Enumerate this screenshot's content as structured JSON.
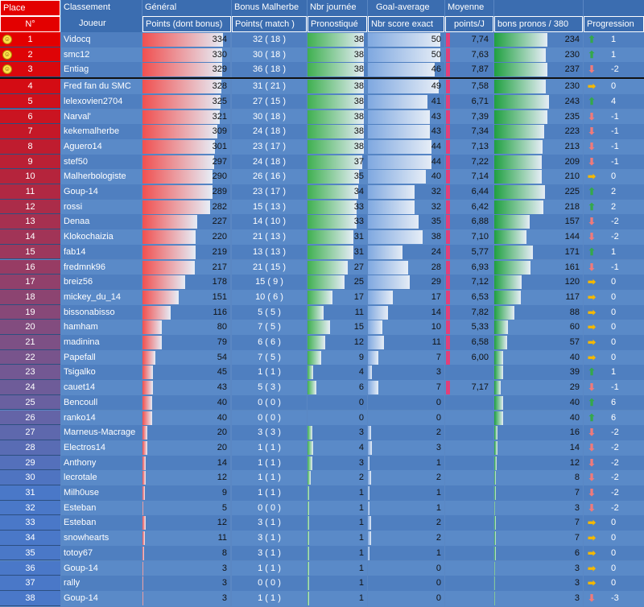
{
  "headers": {
    "place": "Place",
    "no": "N°",
    "classement": "Classement",
    "joueur": "Joueur",
    "general": "Général",
    "general_sub": "Points (dont bonus)",
    "bonus": "Bonus Malherbe",
    "bonus_sub": "Points( match )",
    "nbr_journee": "Nbr journée",
    "nbr_journee_sub": "Pronostiqué",
    "goal_average": "Goal-average",
    "goal_average_sub": "Nbr score exact",
    "moyenne": "Moyenne",
    "moyenne_sub": "points/J",
    "bons_pronos": "bons pronos / 380",
    "progression": "Progression"
  },
  "colors": {
    "place_red": "#e30000",
    "general_bar": "#f05050",
    "nbrj_bar": "#3fb050",
    "ga_bar": "#7fa8e0",
    "moy_bar": "#e0407a",
    "bons_bar": "#1fa040",
    "up": "#34a84a",
    "down": "#f07a7a",
    "flat": "#f5b800"
  },
  "table": {
    "max_general": 334,
    "max_nbrj": 38,
    "max_ga": 50,
    "max_moy": 7.87,
    "max_bons": 380,
    "rows": [
      {
        "place": "1",
        "smile": true,
        "name": "Vidocq",
        "gen": "334",
        "bonus": "32 ( 18 )",
        "nbrj": "38",
        "ga": "50",
        "moy": "7,74",
        "bons": "234",
        "dir": "up",
        "prog": "1"
      },
      {
        "place": "2",
        "smile": true,
        "name": "smc12",
        "gen": "330",
        "bonus": "30 ( 18 )",
        "nbrj": "38",
        "ga": "50",
        "moy": "7,63",
        "bons": "230",
        "dir": "up",
        "prog": "1"
      },
      {
        "place": "3",
        "smile": true,
        "name": "Entiag",
        "gen": "329",
        "bonus": "36 ( 18 )",
        "nbrj": "38",
        "ga": "46",
        "moy": "7,87",
        "bons": "237",
        "dir": "down",
        "prog": "-2"
      },
      {
        "place": "4",
        "smile": false,
        "name": "Fred fan du SMC",
        "gen": "328",
        "bonus": "31 ( 21 )",
        "nbrj": "38",
        "ga": "49",
        "moy": "7,58",
        "bons": "230",
        "dir": "flat",
        "prog": "0"
      },
      {
        "place": "5",
        "smile": false,
        "name": "lelexovien2704",
        "gen": "325",
        "bonus": "27 ( 15 )",
        "nbrj": "38",
        "ga": "41",
        "moy": "6,71",
        "bons": "243",
        "dir": "up",
        "prog": "4"
      },
      {
        "place": "6",
        "smile": false,
        "name": "Narval'",
        "gen": "321",
        "bonus": "30 ( 18 )",
        "nbrj": "38",
        "ga": "43",
        "moy": "7,39",
        "bons": "235",
        "dir": "down",
        "prog": "-1"
      },
      {
        "place": "7",
        "smile": false,
        "name": "kekemalherbe",
        "gen": "309",
        "bonus": "24 ( 18 )",
        "nbrj": "38",
        "ga": "43",
        "moy": "7,34",
        "bons": "223",
        "dir": "down",
        "prog": "-1"
      },
      {
        "place": "8",
        "smile": false,
        "name": "Aguero14",
        "gen": "301",
        "bonus": "23 ( 17 )",
        "nbrj": "38",
        "ga": "44",
        "moy": "7,13",
        "bons": "213",
        "dir": "down",
        "prog": "-1"
      },
      {
        "place": "9",
        "smile": false,
        "name": "stef50",
        "gen": "297",
        "bonus": "24 ( 18 )",
        "nbrj": "37",
        "ga": "44",
        "moy": "7,22",
        "bons": "209",
        "dir": "down",
        "prog": "-1"
      },
      {
        "place": "10",
        "smile": false,
        "name": "Malherbologiste",
        "gen": "290",
        "bonus": "26 ( 16 )",
        "nbrj": "35",
        "ga": "40",
        "moy": "7,14",
        "bons": "210",
        "dir": "flat",
        "prog": "0"
      },
      {
        "place": "11",
        "smile": false,
        "name": "Goup-14",
        "gen": "289",
        "bonus": "23 ( 17 )",
        "nbrj": "34",
        "ga": "32",
        "moy": "6,44",
        "bons": "225",
        "dir": "up",
        "prog": "2"
      },
      {
        "place": "12",
        "smile": false,
        "name": "rossi",
        "gen": "282",
        "bonus": "15 ( 13 )",
        "nbrj": "33",
        "ga": "32",
        "moy": "6,42",
        "bons": "218",
        "dir": "up",
        "prog": "2"
      },
      {
        "place": "13",
        "smile": false,
        "name": "Denaa",
        "gen": "227",
        "bonus": "14 ( 10 )",
        "nbrj": "33",
        "ga": "35",
        "moy": "6,88",
        "bons": "157",
        "dir": "down",
        "prog": "-2"
      },
      {
        "place": "14",
        "smile": false,
        "name": "Klokochaizia",
        "gen": "220",
        "bonus": "21 ( 13 )",
        "nbrj": "31",
        "ga": "38",
        "moy": "7,10",
        "bons": "144",
        "dir": "down",
        "prog": "-2"
      },
      {
        "place": "15",
        "smile": false,
        "name": "fab14",
        "gen": "219",
        "bonus": "13 ( 13 )",
        "nbrj": "31",
        "ga": "24",
        "moy": "5,77",
        "bons": "171",
        "dir": "up",
        "prog": "1"
      },
      {
        "place": "16",
        "smile": false,
        "name": "fredmnk96",
        "gen": "217",
        "bonus": "21 ( 15 )",
        "nbrj": "27",
        "ga": "28",
        "moy": "6,93",
        "bons": "161",
        "dir": "down",
        "prog": "-1"
      },
      {
        "place": "17",
        "smile": false,
        "name": "breiz56",
        "gen": "178",
        "bonus": "15 ( 9 )",
        "nbrj": "25",
        "ga": "29",
        "moy": "7,12",
        "bons": "120",
        "dir": "flat",
        "prog": "0"
      },
      {
        "place": "18",
        "smile": false,
        "name": "mickey_du_14",
        "gen": "151",
        "bonus": "10 ( 6 )",
        "nbrj": "17",
        "ga": "17",
        "moy": "6,53",
        "bons": "117",
        "dir": "flat",
        "prog": "0"
      },
      {
        "place": "19",
        "smile": false,
        "name": "bissonabisso",
        "gen": "116",
        "bonus": "5 ( 5 )",
        "nbrj": "11",
        "ga": "14",
        "moy": "7,82",
        "bons": "88",
        "dir": "flat",
        "prog": "0"
      },
      {
        "place": "20",
        "smile": false,
        "name": "hamham",
        "gen": "80",
        "bonus": "7 ( 5 )",
        "nbrj": "15",
        "ga": "10",
        "moy": "5,33",
        "bons": "60",
        "dir": "flat",
        "prog": "0"
      },
      {
        "place": "21",
        "smile": false,
        "name": "madinina",
        "gen": "79",
        "bonus": "6 ( 6 )",
        "nbrj": "12",
        "ga": "11",
        "moy": "6,58",
        "bons": "57",
        "dir": "flat",
        "prog": "0"
      },
      {
        "place": "22",
        "smile": false,
        "name": "Papefall",
        "gen": "54",
        "bonus": "7 ( 5 )",
        "nbrj": "9",
        "ga": "7",
        "moy": "6,00",
        "bons": "40",
        "dir": "flat",
        "prog": "0"
      },
      {
        "place": "23",
        "smile": false,
        "name": "Tsigalko",
        "gen": "45",
        "bonus": "1 ( 1 )",
        "nbrj": "4",
        "ga": "3",
        "moy": "",
        "bons": "39",
        "dir": "up",
        "prog": "1"
      },
      {
        "place": "24",
        "smile": false,
        "name": "cauet14",
        "gen": "43",
        "bonus": "5 ( 3 )",
        "nbrj": "6",
        "ga": "7",
        "moy": "7,17",
        "bons": "29",
        "dir": "down",
        "prog": "-1"
      },
      {
        "place": "25",
        "smile": false,
        "name": "Bencoull",
        "gen": "40",
        "bonus": "0 ( 0 )",
        "nbrj": "0",
        "ga": "0",
        "moy": "",
        "bons": "40",
        "dir": "up",
        "prog": "6"
      },
      {
        "place": "26",
        "smile": false,
        "name": "ranko14",
        "gen": "40",
        "bonus": "0 ( 0 )",
        "nbrj": "0",
        "ga": "0",
        "moy": "",
        "bons": "40",
        "dir": "up",
        "prog": "6"
      },
      {
        "place": "27",
        "smile": false,
        "name": "Marneus-Macrage",
        "gen": "20",
        "bonus": "3 ( 3 )",
        "nbrj": "3",
        "ga": "2",
        "moy": "",
        "bons": "16",
        "dir": "down",
        "prog": "-2"
      },
      {
        "place": "28",
        "smile": false,
        "name": "Electros14",
        "gen": "20",
        "bonus": "1 ( 1 )",
        "nbrj": "4",
        "ga": "3",
        "moy": "",
        "bons": "14",
        "dir": "down",
        "prog": "-2"
      },
      {
        "place": "29",
        "smile": false,
        "name": "Anthony",
        "gen": "14",
        "bonus": "1 ( 1 )",
        "nbrj": "3",
        "ga": "1",
        "moy": "",
        "bons": "12",
        "dir": "down",
        "prog": "-2"
      },
      {
        "place": "30",
        "smile": false,
        "name": "lecrotale",
        "gen": "12",
        "bonus": "1 ( 1 )",
        "nbrj": "2",
        "ga": "2",
        "moy": "",
        "bons": "8",
        "dir": "down",
        "prog": "-2"
      },
      {
        "place": "31",
        "smile": false,
        "name": "Milh0use",
        "gen": "9",
        "bonus": "1 ( 1 )",
        "nbrj": "1",
        "ga": "1",
        "moy": "",
        "bons": "7",
        "dir": "down",
        "prog": "-2"
      },
      {
        "place": "32",
        "smile": false,
        "name": "Esteban",
        "gen": "5",
        "bonus": "0 ( 0 )",
        "nbrj": "1",
        "ga": "1",
        "moy": "",
        "bons": "3",
        "dir": "down",
        "prog": "-2"
      },
      {
        "place": "33",
        "smile": false,
        "name": "Esteban",
        "gen": "12",
        "bonus": "3 ( 1 )",
        "nbrj": "1",
        "ga": "2",
        "moy": "",
        "bons": "7",
        "dir": "flat",
        "prog": "0"
      },
      {
        "place": "34",
        "smile": false,
        "name": "snowhearts",
        "gen": "11",
        "bonus": "3 ( 1 )",
        "nbrj": "1",
        "ga": "2",
        "moy": "",
        "bons": "7",
        "dir": "flat",
        "prog": "0"
      },
      {
        "place": "35",
        "smile": false,
        "name": "totoy67",
        "gen": "8",
        "bonus": "3 ( 1 )",
        "nbrj": "1",
        "ga": "1",
        "moy": "",
        "bons": "6",
        "dir": "flat",
        "prog": "0"
      },
      {
        "place": "36",
        "smile": false,
        "name": "Goup-14",
        "gen": "3",
        "bonus": "1 ( 1 )",
        "nbrj": "1",
        "ga": "0",
        "moy": "",
        "bons": "3",
        "dir": "flat",
        "prog": "0"
      },
      {
        "place": "37",
        "smile": false,
        "name": "rally",
        "gen": "3",
        "bonus": "0 ( 0 )",
        "nbrj": "1",
        "ga": "0",
        "moy": "",
        "bons": "3",
        "dir": "flat",
        "prog": "0"
      },
      {
        "place": "38",
        "smile": false,
        "name": "Goup-14",
        "gen": "3",
        "bonus": "1 ( 1 )",
        "nbrj": "1",
        "ga": "0",
        "moy": "",
        "bons": "3",
        "dir": "down",
        "prog": "-3"
      }
    ]
  }
}
